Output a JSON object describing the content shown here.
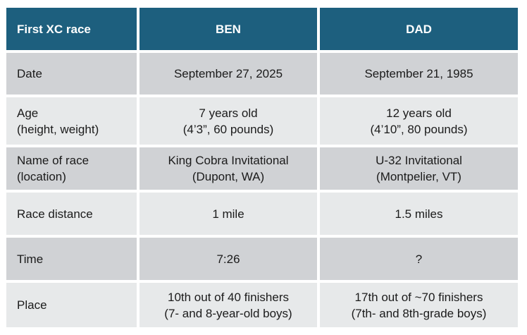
{
  "colors": {
    "page-bg": "#FFFFFF",
    "header-bg": "#1D5F7E",
    "header-text": "#FFFFFF",
    "row-dark": "#D0D2D5",
    "row-light": "#E7E9EA",
    "body-text": "#1B1B1B"
  },
  "table": {
    "title": "First XC race",
    "columns": [
      "BEN",
      "DAD"
    ],
    "rows": [
      {
        "label": "Date",
        "ben": "September 27, 2025",
        "dad": "September 21, 1985"
      },
      {
        "label": "Age\n(height, weight)",
        "ben": "7 years old\n(4’3”, 60 pounds)",
        "dad": "12 years old\n(4’10”, 80 pounds)"
      },
      {
        "label": "Name of race\n(location)",
        "ben": "King Cobra Invitational\n(Dupont, WA)",
        "dad": "U-32 Invitational\n(Montpelier, VT)"
      },
      {
        "label": "Race distance",
        "ben": "1 mile",
        "dad": "1.5 miles"
      },
      {
        "label": "Time",
        "ben": "7:26",
        "dad": "?"
      },
      {
        "label": "Place",
        "ben": "10th out of 40 finishers\n(7- and 8-year-old boys)",
        "dad": "17th out of ~70 finishers\n(7th- and 8th-grade boys)"
      }
    ]
  }
}
